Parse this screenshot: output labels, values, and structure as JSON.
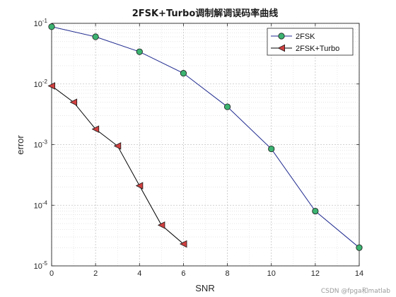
{
  "chart_data": {
    "type": "line",
    "title": "2FSK+Turbo调制解调误码率曲线",
    "xlabel": "SNR",
    "ylabel": "error",
    "xlim": [
      0,
      14
    ],
    "ylim": [
      1e-05,
      0.1
    ],
    "yscale": "log",
    "grid": true,
    "legend_position": "top-right",
    "xticks": [
      "0",
      "2",
      "4",
      "6",
      "8",
      "10",
      "12",
      "14"
    ],
    "yticks": [
      {
        "base": "10",
        "exp": "-1",
        "value": 0.1
      },
      {
        "base": "10",
        "exp": "-2",
        "value": 0.01
      },
      {
        "base": "10",
        "exp": "-3",
        "value": 0.001
      },
      {
        "base": "10",
        "exp": "-4",
        "value": 0.0001
      },
      {
        "base": "10",
        "exp": "-5",
        "value": 1e-05
      }
    ],
    "series": [
      {
        "name": "2FSK",
        "marker": "circle",
        "line_color": "#1f2a8f",
        "marker_color": "#3cb371",
        "x": [
          0,
          2,
          4,
          6,
          8,
          10,
          12,
          14
        ],
        "y": [
          0.088,
          0.06,
          0.034,
          0.015,
          0.0042,
          0.00085,
          8e-05,
          2e-05
        ]
      },
      {
        "name": "2FSK+Turbo",
        "marker": "triangle-left",
        "line_color": "#000000",
        "marker_color": "#d04040",
        "x": [
          0,
          1,
          2,
          3,
          4,
          5,
          6
        ],
        "y": [
          0.0093,
          0.005,
          0.0018,
          0.00095,
          0.00021,
          4.7e-05,
          2.3e-05
        ]
      }
    ]
  },
  "watermark": "CSDN @fpga和matlab"
}
